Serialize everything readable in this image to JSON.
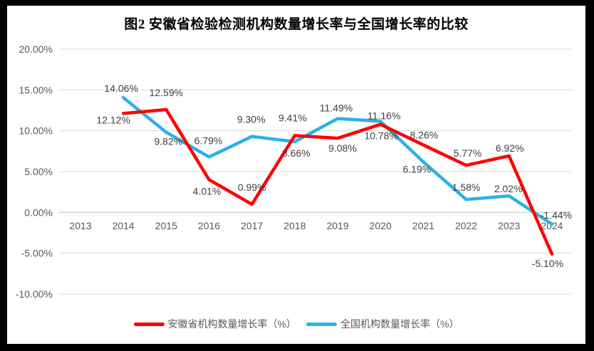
{
  "window": {
    "frame_color": "#000000",
    "panel_color": "#FFFFFF"
  },
  "chart_data": {
    "type": "line",
    "title": "图2 安徽省检验检测机构数量增长率与全国增长率的比较",
    "categories": [
      "2013",
      "2014",
      "2015",
      "2016",
      "2017",
      "2018",
      "2019",
      "2020",
      "2021",
      "2022",
      "2023",
      "2024"
    ],
    "series": [
      {
        "name": "安徽省机构数量增长率（%）",
        "color": "#FF0000",
        "values": [
          null,
          12.12,
          12.59,
          4.01,
          0.99,
          9.41,
          9.08,
          10.78,
          8.26,
          5.77,
          6.92,
          -5.1
        ],
        "labels": [
          null,
          "12.12%",
          "12.59%",
          "4.01%",
          "0.99%",
          "9.41%",
          "9.08%",
          "10.78%",
          "8.26%",
          "5.77%",
          "6.92%",
          "-5.10%"
        ],
        "label_offsets": [
          null,
          [
            -14,
            9
          ],
          [
            0,
            -24
          ],
          [
            -3,
            16
          ],
          [
            0,
            -24
          ],
          [
            -3,
            -25
          ],
          [
            7,
            14
          ],
          [
            1,
            16
          ],
          [
            1,
            -14
          ],
          [
            2,
            -17
          ],
          [
            1,
            -11
          ],
          [
            -6,
            13
          ]
        ]
      },
      {
        "name": "全国机构数量增长率（%）",
        "color": "#29B2E8",
        "values": [
          null,
          14.06,
          9.82,
          6.79,
          9.3,
          8.66,
          11.49,
          11.16,
          6.19,
          1.58,
          2.02,
          -1.44
        ],
        "labels": [
          null,
          "14.06%",
          "9.82%",
          "6.79%",
          "9.30%",
          "8.66%",
          "11.49%",
          "11.16%",
          "6.19%",
          "1.58%",
          "2.02%",
          "-1.44%"
        ],
        "label_offsets": [
          null,
          [
            -3,
            -13
          ],
          [
            3,
            13
          ],
          [
            -1,
            -23
          ],
          [
            -1,
            -24
          ],
          [
            2,
            16
          ],
          [
            -2,
            -15
          ],
          [
            5,
            -8
          ],
          [
            -9,
            10
          ],
          [
            0,
            -17
          ],
          [
            -1,
            -10
          ],
          [
            6,
            -13
          ]
        ]
      }
    ],
    "y_axis": {
      "min": -10,
      "max": 20,
      "step": 5,
      "ticks": [
        {
          "label": "20.00%",
          "value": 20
        },
        {
          "label": "15.00%",
          "value": 15
        },
        {
          "label": "10.00%",
          "value": 10
        },
        {
          "label": "5.00%",
          "value": 5
        },
        {
          "label": "0.00%",
          "value": 0
        },
        {
          "label": "-5.00%",
          "value": -5
        },
        {
          "label": "-10.00%",
          "value": -10
        }
      ]
    },
    "grid": true,
    "legend_position": "bottom",
    "colors": {
      "grid": "#D9D9D9",
      "axis_zero_line": "#BFBFBF",
      "tick_text": "#595959",
      "data_label_text": "#404040",
      "title_text": "#000000",
      "legend_text": "#595959"
    }
  }
}
